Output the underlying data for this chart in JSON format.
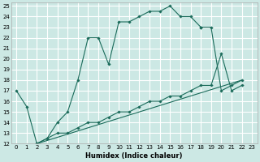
{
  "xlabel": "Humidex (Indice chaleur)",
  "bg_color": "#cce8e4",
  "line_color": "#1a6b5a",
  "grid_color": "#ffffff",
  "xlim": [
    -0.5,
    23.5
  ],
  "ylim": [
    12,
    25.3
  ],
  "xticks": [
    0,
    1,
    2,
    3,
    4,
    5,
    6,
    7,
    8,
    9,
    10,
    11,
    12,
    13,
    14,
    15,
    16,
    17,
    18,
    19,
    20,
    21,
    22,
    23
  ],
  "yticks": [
    12,
    13,
    14,
    15,
    16,
    17,
    18,
    19,
    20,
    21,
    22,
    23,
    24,
    25
  ],
  "lines": [
    {
      "x": [
        0,
        1,
        2,
        3,
        4,
        5,
        6,
        7,
        8,
        9,
        10,
        11,
        12,
        13,
        14,
        15,
        16,
        17,
        18
      ],
      "y": [
        17,
        15.5,
        12,
        12.5,
        14,
        15,
        18,
        22,
        22,
        19.5,
        23.5,
        23.5,
        24,
        24.5,
        24.5,
        25,
        24,
        24,
        23
      ],
      "has_markers": true
    },
    {
      "x": [
        18,
        19,
        20,
        21,
        22
      ],
      "y": [
        23,
        23,
        17,
        17.5,
        18
      ],
      "has_markers": true
    },
    {
      "x": [
        2,
        3,
        4,
        5,
        6,
        7,
        8,
        9,
        10,
        11,
        12,
        13,
        14,
        15,
        16,
        17,
        18,
        19,
        20,
        21,
        22
      ],
      "y": [
        12,
        12.5,
        13,
        13,
        13.5,
        14,
        14,
        14.5,
        15,
        15,
        15.5,
        16,
        16,
        16.5,
        16.5,
        17,
        17.5,
        17.5,
        20.5,
        17,
        17.5
      ],
      "has_markers": true
    },
    {
      "x": [
        2,
        22
      ],
      "y": [
        12,
        18
      ],
      "has_markers": false
    }
  ]
}
